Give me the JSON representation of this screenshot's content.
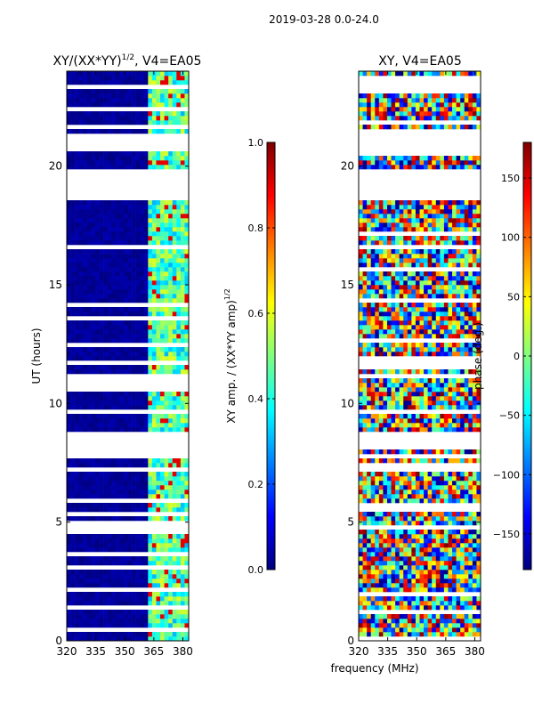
{
  "figure": {
    "suptitle": "2019-03-28 0.0-24.0",
    "xlabel_shared": "frequency (MHz)"
  },
  "chart_data": [
    {
      "type": "heatmap",
      "title": "XY/(XX*YY)",
      "title_exponent": "1/2",
      "title_suffix": ", V4=EA05",
      "ylabel": "UT (hours)",
      "xlim": [
        320,
        383
      ],
      "ylim": [
        0,
        24
      ],
      "xticks": [
        320,
        335,
        350,
        365,
        380
      ],
      "yticks": [
        0,
        5,
        10,
        15,
        20
      ],
      "colorbar": {
        "label": "XY amp. / (XX*YY amp)",
        "label_exponent": "1/2",
        "range": [
          0.0,
          1.0
        ],
        "ticks": [
          0.0,
          0.2,
          0.4,
          0.6,
          0.8,
          1.0
        ],
        "tick_labels": [
          "0.0",
          "0.2",
          "0.4",
          "0.6",
          "0.8",
          "1.0"
        ],
        "colormap": "jet"
      },
      "dominant_value": 0.0,
      "band_value_range": [
        0.3,
        0.6
      ],
      "rfi_band_mhz": [
        362,
        383
      ],
      "gaps_ut": [
        [
          8.0,
          8.8
        ],
        [
          18.6,
          19.9
        ],
        [
          20.6,
          21.4
        ]
      ]
    },
    {
      "type": "heatmap",
      "title": "XY, V4=EA05",
      "xlim": [
        320,
        383
      ],
      "ylim": [
        0,
        24
      ],
      "xticks": [
        320,
        335,
        350,
        365,
        380
      ],
      "yticks": [
        0,
        5,
        10,
        15,
        20
      ],
      "colorbar": {
        "label": "phase (deg.)",
        "range": [
          -180,
          180
        ],
        "ticks": [
          -150,
          -100,
          -50,
          0,
          50,
          100,
          150
        ],
        "tick_labels": [
          "−150",
          "−100",
          "−50",
          "0",
          "50",
          "100",
          "150"
        ],
        "colormap": "jet"
      },
      "phase_range_deg": [
        -180,
        180
      ],
      "gaps_ut": [
        [
          8.0,
          8.8
        ],
        [
          18.6,
          19.9
        ],
        [
          20.6,
          21.4
        ]
      ]
    }
  ],
  "colors": {
    "jet_stops": [
      "#00007f",
      "#0000ff",
      "#007fff",
      "#00ffff",
      "#7fff7f",
      "#ffff00",
      "#ff7f00",
      "#ff0000",
      "#7f0000"
    ]
  }
}
